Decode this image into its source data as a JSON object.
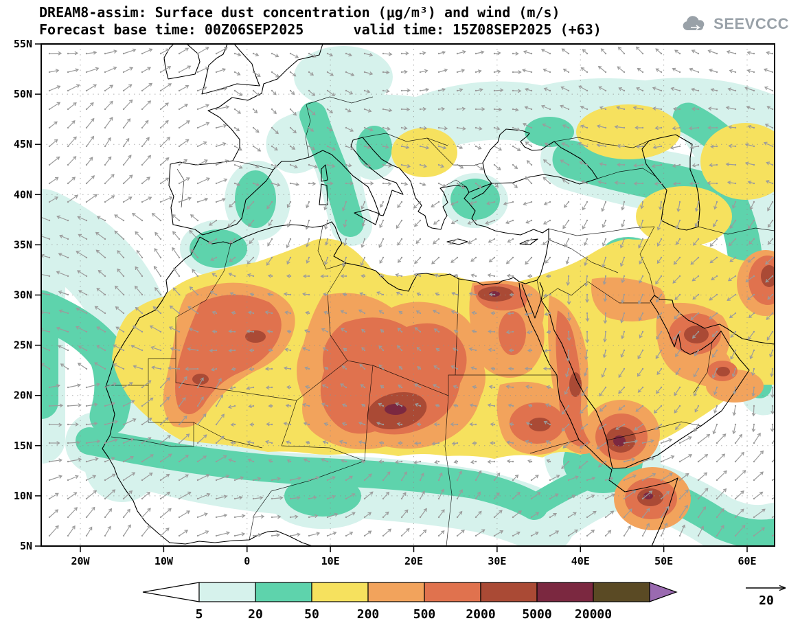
{
  "header": {
    "title_line1": "DREAM8-assim: Surface dust concentration (μg/m³) and wind (m/s)",
    "title_line2": "Forecast base time: 00Z06SEP2025      valid time: 15Z08SEP2025 (+63)",
    "logo_text": "SEEVCCC"
  },
  "map": {
    "lat_ticks": [
      "55N",
      "50N",
      "45N",
      "40N",
      "35N",
      "30N",
      "25N",
      "20N",
      "15N",
      "10N",
      "5N"
    ],
    "lon_ticks": [
      "20W",
      "10W",
      "0",
      "10E",
      "20E",
      "30E",
      "40E",
      "50E",
      "60E"
    ]
  },
  "legend": {
    "labels": [
      "5",
      "20",
      "50",
      "200",
      "500",
      "2000",
      "5000",
      "20000"
    ],
    "segment_colors": [
      "#ffffff",
      "#d6f2ec",
      "#5ed3ac",
      "#f6e15e",
      "#f2a35c",
      "#e0724e",
      "#aa4a35",
      "#7b2840",
      "#5a4a24",
      "#9a6ab0"
    ],
    "wind_reference": "20"
  },
  "chart_data": {
    "type": "heatmap",
    "title": "DREAM8-assim: Surface dust concentration (μg/m³) and wind (m/s)",
    "subtitle": "Forecast base time: 00Z06SEP2025  valid time: 15Z08SEP2025 (+63)",
    "units": "μg/m³",
    "contour_levels": [
      5,
      20,
      50,
      200,
      500,
      2000,
      5000,
      20000
    ],
    "wind_reference_ms": 20,
    "lat_axis": [
      "5N",
      "10N",
      "15N",
      "20N",
      "25N",
      "30N",
      "35N",
      "40N",
      "45N",
      "50N",
      "55N"
    ],
    "lon_axis": [
      "20W",
      "10W",
      "0",
      "10E",
      "20E",
      "30E",
      "40E",
      "50E",
      "60E"
    ],
    "legend_position": "bottom"
  }
}
